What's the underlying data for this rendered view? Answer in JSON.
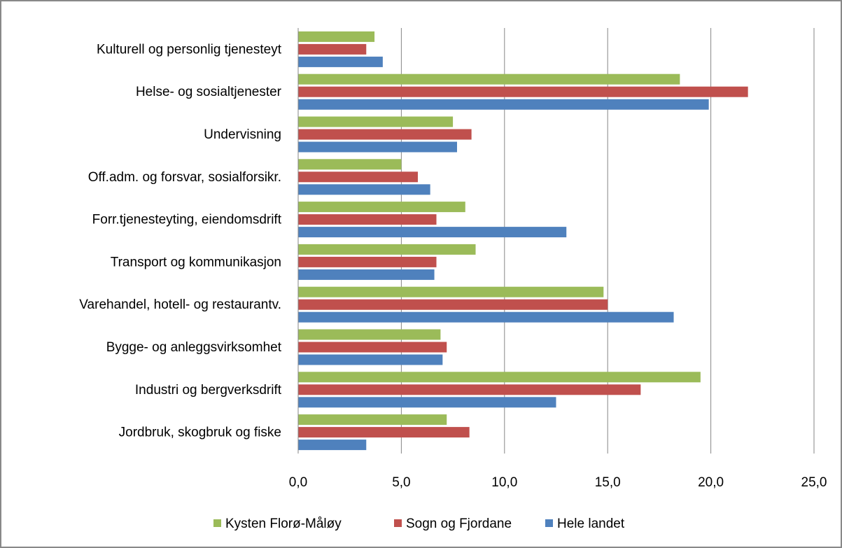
{
  "chart_data": {
    "type": "hbar",
    "categories": [
      "Kulturell og personlig tjenesteyt",
      "Helse- og sosialtjenester",
      "Undervisning",
      "Off.adm. og forsvar, sosialforsikr.",
      "Forr.tjenesteyting, eiendomsdrift",
      "Transport og kommunikasjon",
      "Varehandel, hotell- og restaurantv.",
      "Bygge- og anleggsvirksomhet",
      "Industri og bergverksdrift",
      "Jordbruk, skogbruk og fiske"
    ],
    "series": [
      {
        "name": "Kysten Florø-Måløy",
        "color": "#9bbb59",
        "values": [
          3.7,
          18.5,
          7.5,
          5.0,
          8.1,
          8.6,
          14.8,
          6.9,
          19.5,
          7.2
        ]
      },
      {
        "name": "Sogn og Fjordane",
        "color": "#c0504d",
        "values": [
          3.3,
          21.8,
          8.4,
          5.8,
          6.7,
          6.7,
          15.0,
          7.2,
          16.6,
          8.3
        ]
      },
      {
        "name": "Hele landet",
        "color": "#4f81bd",
        "values": [
          4.1,
          19.9,
          7.7,
          6.4,
          13.0,
          6.6,
          18.2,
          7.0,
          12.5,
          3.3
        ]
      }
    ],
    "xlim": [
      0,
      25
    ],
    "xticks": [
      {
        "value": 0,
        "label": "0,0"
      },
      {
        "value": 5,
        "label": "5,0"
      },
      {
        "value": 10,
        "label": "10,0"
      },
      {
        "value": 15,
        "label": "15,0"
      },
      {
        "value": 20,
        "label": "20,0"
      },
      {
        "value": 25,
        "label": "25,0"
      }
    ],
    "grid": true,
    "legend": "bottom"
  }
}
